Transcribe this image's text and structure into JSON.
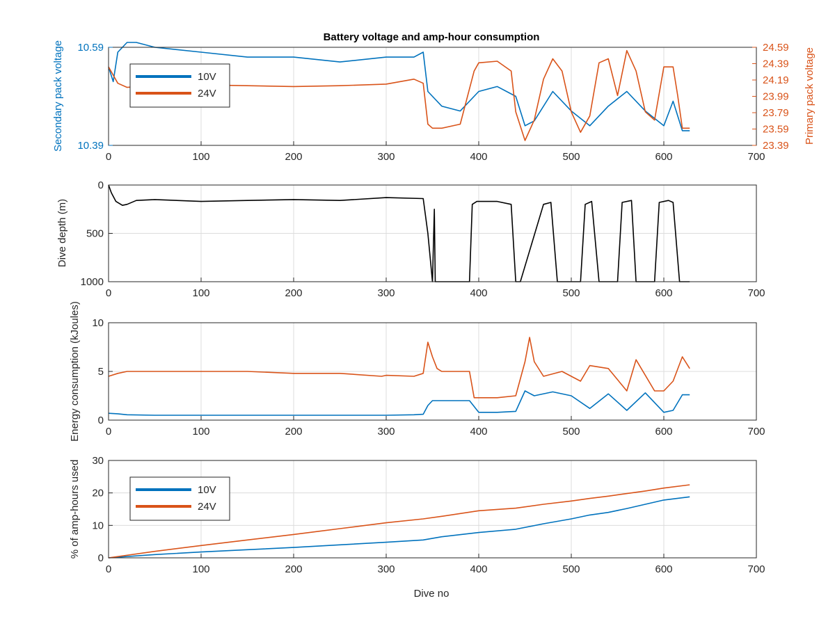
{
  "colors": {
    "blue": "#0072BD",
    "orange": "#D95319",
    "black": "#000000",
    "grid": "#dcdcdc",
    "axis": "#262626"
  },
  "chart_data": [
    {
      "type": "line",
      "title": "Battery voltage and amp-hour consumption",
      "ylabel_left": "Secondary pack voltage",
      "ylabel_right": "Primary pack voltage",
      "xlabel": "",
      "xlim": [
        0,
        700
      ],
      "xticks": [
        "0",
        "100",
        "200",
        "300",
        "400",
        "500",
        "600",
        "700"
      ],
      "ylim_left": [
        10.39,
        10.59
      ],
      "yticks_left": [
        "10.39",
        "10.59"
      ],
      "ylim_right": [
        23.39,
        24.59
      ],
      "yticks_right": [
        "23.39",
        "23.59",
        "23.79",
        "23.99",
        "24.19",
        "24.39",
        "24.59"
      ],
      "grid": true,
      "legend": {
        "placement": "top-left",
        "entries": [
          "10V",
          "24V"
        ]
      },
      "series": [
        {
          "name": "10V",
          "axis": "left",
          "x": [
            0,
            5,
            10,
            20,
            30,
            50,
            100,
            150,
            200,
            250,
            300,
            330,
            340,
            345,
            350,
            360,
            380,
            400,
            420,
            440,
            450,
            460,
            480,
            500,
            520,
            540,
            560,
            580,
            600,
            610,
            620,
            628
          ],
          "y": [
            10.55,
            10.52,
            10.58,
            10.6,
            10.6,
            10.59,
            10.58,
            10.57,
            10.57,
            10.56,
            10.57,
            10.57,
            10.58,
            10.5,
            10.49,
            10.47,
            10.46,
            10.5,
            10.51,
            10.49,
            10.43,
            10.44,
            10.5,
            10.46,
            10.43,
            10.47,
            10.5,
            10.46,
            10.43,
            10.48,
            10.42,
            10.42
          ]
        },
        {
          "name": "24V",
          "axis": "right",
          "x": [
            0,
            5,
            10,
            20,
            50,
            100,
            150,
            200,
            250,
            300,
            330,
            340,
            345,
            350,
            360,
            380,
            395,
            400,
            420,
            435,
            440,
            450,
            460,
            470,
            480,
            490,
            500,
            510,
            520,
            530,
            540,
            550,
            560,
            570,
            580,
            590,
            600,
            610,
            615,
            620,
            628
          ],
          "y": [
            24.35,
            24.25,
            24.15,
            24.1,
            24.12,
            24.13,
            24.12,
            24.11,
            24.12,
            24.14,
            24.2,
            24.15,
            23.65,
            23.6,
            23.6,
            23.65,
            24.3,
            24.4,
            24.42,
            24.3,
            23.8,
            23.45,
            23.7,
            24.2,
            24.45,
            24.3,
            23.8,
            23.55,
            23.75,
            24.4,
            24.45,
            24.0,
            24.55,
            24.3,
            23.8,
            23.7,
            24.35,
            24.35,
            24.0,
            23.6,
            23.6
          ]
        }
      ]
    },
    {
      "type": "line",
      "title": "",
      "ylabel": "Dive depth (m)",
      "xlabel": "",
      "xlim": [
        0,
        700
      ],
      "xticks": [
        "0",
        "100",
        "200",
        "300",
        "400",
        "500",
        "600",
        "700"
      ],
      "ylim": [
        0,
        1000
      ],
      "y_reversed": true,
      "yticks": [
        "0",
        "500",
        "1000"
      ],
      "grid": true,
      "series": [
        {
          "name": "",
          "x": [
            0,
            3,
            8,
            15,
            20,
            30,
            50,
            100,
            150,
            200,
            250,
            300,
            340,
            345,
            350,
            352,
            353,
            355,
            360,
            380,
            390,
            393,
            398,
            420,
            435,
            440,
            445,
            470,
            478,
            485,
            490,
            500,
            510,
            515,
            522,
            530,
            540,
            550,
            555,
            565,
            570,
            580,
            590,
            595,
            605,
            610,
            617,
            620,
            628
          ],
          "y": [
            0,
            80,
            170,
            210,
            200,
            160,
            150,
            170,
            160,
            150,
            160,
            130,
            140,
            500,
            1000,
            250,
            1000,
            1000,
            1000,
            1000,
            1000,
            200,
            170,
            170,
            200,
            1000,
            1000,
            200,
            180,
            1000,
            1000,
            1000,
            1000,
            200,
            170,
            1000,
            1000,
            1000,
            180,
            160,
            1000,
            1000,
            1000,
            180,
            160,
            180,
            1000,
            1000,
            1000
          ]
        }
      ]
    },
    {
      "type": "line",
      "title": "",
      "ylabel": "Energy consumption (kJoules)",
      "xlabel": "",
      "xlim": [
        0,
        700
      ],
      "xticks": [
        "0",
        "100",
        "200",
        "300",
        "400",
        "500",
        "600",
        "700"
      ],
      "ylim": [
        0,
        10
      ],
      "yticks": [
        "0",
        "5",
        "10"
      ],
      "grid": true,
      "series": [
        {
          "name": "10V",
          "x": [
            0,
            10,
            20,
            50,
            100,
            150,
            200,
            250,
            300,
            330,
            340,
            345,
            350,
            360,
            390,
            400,
            420,
            440,
            450,
            460,
            480,
            500,
            520,
            540,
            560,
            580,
            600,
            610,
            620,
            628
          ],
          "y": [
            0.7,
            0.65,
            0.55,
            0.5,
            0.5,
            0.5,
            0.5,
            0.5,
            0.5,
            0.55,
            0.6,
            1.5,
            2.0,
            2.0,
            2.0,
            0.8,
            0.8,
            0.9,
            3.0,
            2.5,
            2.9,
            2.5,
            1.2,
            2.7,
            1.0,
            2.8,
            0.8,
            1.0,
            2.6,
            2.6
          ]
        },
        {
          "name": "24V",
          "x": [
            0,
            10,
            20,
            50,
            100,
            150,
            200,
            250,
            295,
            300,
            330,
            340,
            345,
            350,
            355,
            360,
            390,
            395,
            420,
            440,
            450,
            455,
            460,
            470,
            490,
            510,
            520,
            540,
            560,
            570,
            590,
            600,
            610,
            620,
            628
          ],
          "y": [
            4.5,
            4.8,
            5.0,
            5.0,
            5.0,
            5.0,
            4.8,
            4.8,
            4.5,
            4.6,
            4.5,
            4.8,
            8.0,
            6.5,
            5.3,
            5.0,
            5.0,
            2.3,
            2.3,
            2.5,
            6.0,
            8.5,
            6.0,
            4.5,
            5.0,
            4.0,
            5.6,
            5.3,
            3.0,
            6.2,
            3.0,
            3.0,
            4.0,
            6.5,
            5.3
          ]
        }
      ]
    },
    {
      "type": "line",
      "title": "",
      "ylabel": "% of amp-hours used",
      "xlabel": "Dive no",
      "xlim": [
        0,
        700
      ],
      "xticks": [
        "0",
        "100",
        "200",
        "300",
        "400",
        "500",
        "600",
        "700"
      ],
      "ylim": [
        0,
        30
      ],
      "yticks": [
        "0",
        "10",
        "20",
        "30"
      ],
      "grid": true,
      "legend": {
        "placement": "top-left",
        "entries": [
          "10V",
          "24V"
        ]
      },
      "series": [
        {
          "name": "10V",
          "x": [
            0,
            50,
            100,
            150,
            200,
            250,
            300,
            340,
            360,
            400,
            440,
            470,
            500,
            520,
            540,
            560,
            580,
            600,
            628
          ],
          "y": [
            0,
            1.0,
            1.8,
            2.5,
            3.2,
            4.0,
            4.8,
            5.5,
            6.5,
            7.8,
            8.8,
            10.5,
            12.0,
            13.2,
            14.0,
            15.2,
            16.5,
            17.8,
            18.8
          ]
        },
        {
          "name": "24V",
          "x": [
            0,
            50,
            100,
            150,
            200,
            250,
            300,
            340,
            360,
            400,
            440,
            470,
            500,
            520,
            540,
            560,
            580,
            600,
            628
          ],
          "y": [
            0,
            2.0,
            3.8,
            5.5,
            7.2,
            9.0,
            10.8,
            12.0,
            12.8,
            14.5,
            15.3,
            16.5,
            17.5,
            18.3,
            19.0,
            19.8,
            20.6,
            21.5,
            22.5
          ]
        }
      ]
    }
  ]
}
